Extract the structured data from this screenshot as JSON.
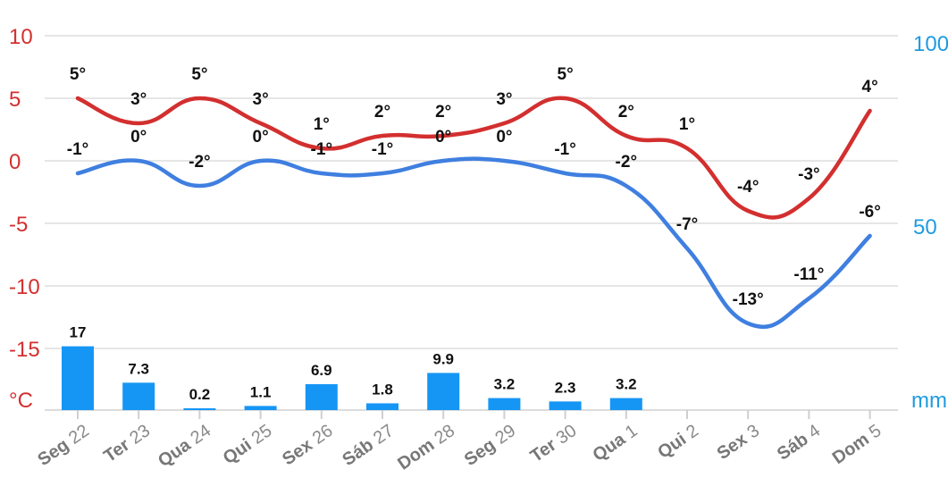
{
  "chart_data": {
    "type": "line",
    "categories": [
      {
        "day": "Seg",
        "num": "22"
      },
      {
        "day": "Ter",
        "num": "23"
      },
      {
        "day": "Qua",
        "num": "24"
      },
      {
        "day": "Qui",
        "num": "25"
      },
      {
        "day": "Sex",
        "num": "26"
      },
      {
        "day": "Sáb",
        "num": "27"
      },
      {
        "day": "Dom",
        "num": "28"
      },
      {
        "day": "Seg",
        "num": "29"
      },
      {
        "day": "Ter",
        "num": "30"
      },
      {
        "day": "Qua",
        "num": "1"
      },
      {
        "day": "Qui",
        "num": "2"
      },
      {
        "day": "Sex",
        "num": "3"
      },
      {
        "day": "Sáb",
        "num": "4"
      },
      {
        "day": "Dom",
        "num": "5"
      }
    ],
    "series": [
      {
        "color": "#d32f2f",
        "values": [
          5,
          3,
          5,
          3,
          1,
          2,
          2,
          3,
          5,
          2,
          1,
          -4,
          -3,
          4
        ],
        "labels": [
          "5°",
          "3°",
          "5°",
          "3°",
          "1°",
          "2°",
          "2°",
          "3°",
          "5°",
          "2°",
          "1°",
          "-4°",
          "-3°",
          "4°"
        ]
      },
      {
        "color": "#3f7fe0",
        "values": [
          -1,
          0,
          -2,
          0,
          -1,
          -1,
          0,
          0,
          -1,
          -2,
          -7,
          -13,
          -11,
          -6
        ],
        "labels": [
          "-1°",
          "0°",
          "-2°",
          "0°",
          "-1°",
          "-1°",
          "0°",
          "0°",
          "-1°",
          "-2°",
          "-7°",
          "-13°",
          "-11°",
          "-6°"
        ]
      },
      {
        "type": "bar",
        "color": "#1596f5",
        "values": [
          17,
          7.3,
          0.2,
          1.1,
          6.9,
          1.8,
          9.9,
          3.2,
          2.3,
          3.2,
          null,
          null,
          null,
          null
        ],
        "labels": [
          "17",
          "7.3",
          "0.2",
          "1.1",
          "6.9",
          "1.8",
          "9.9",
          "3.2",
          "2.3",
          "3.2",
          "",
          "",
          "",
          ""
        ]
      }
    ],
    "y_left": {
      "ticks": [
        "10",
        "5",
        "0",
        "-5",
        "-10",
        "-15"
      ],
      "unit": "°C",
      "range": [
        -20,
        10
      ],
      "color": "#d32f2f"
    },
    "y_right": {
      "ticks": [
        "100",
        "50"
      ],
      "unit": "mm",
      "range": [
        0,
        100
      ],
      "color": "#1e9be0"
    },
    "grid": true
  }
}
